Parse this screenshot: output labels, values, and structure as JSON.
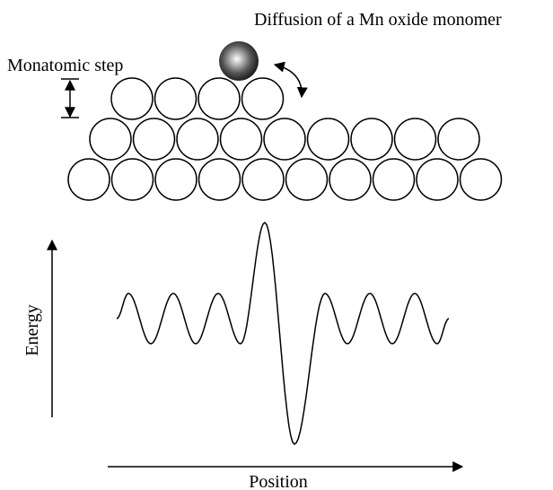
{
  "labels": {
    "title": "Diffusion of a Mn oxide monomer",
    "step": "Monatomic step",
    "y_axis": "Energy",
    "x_axis": "Position"
  }
}
